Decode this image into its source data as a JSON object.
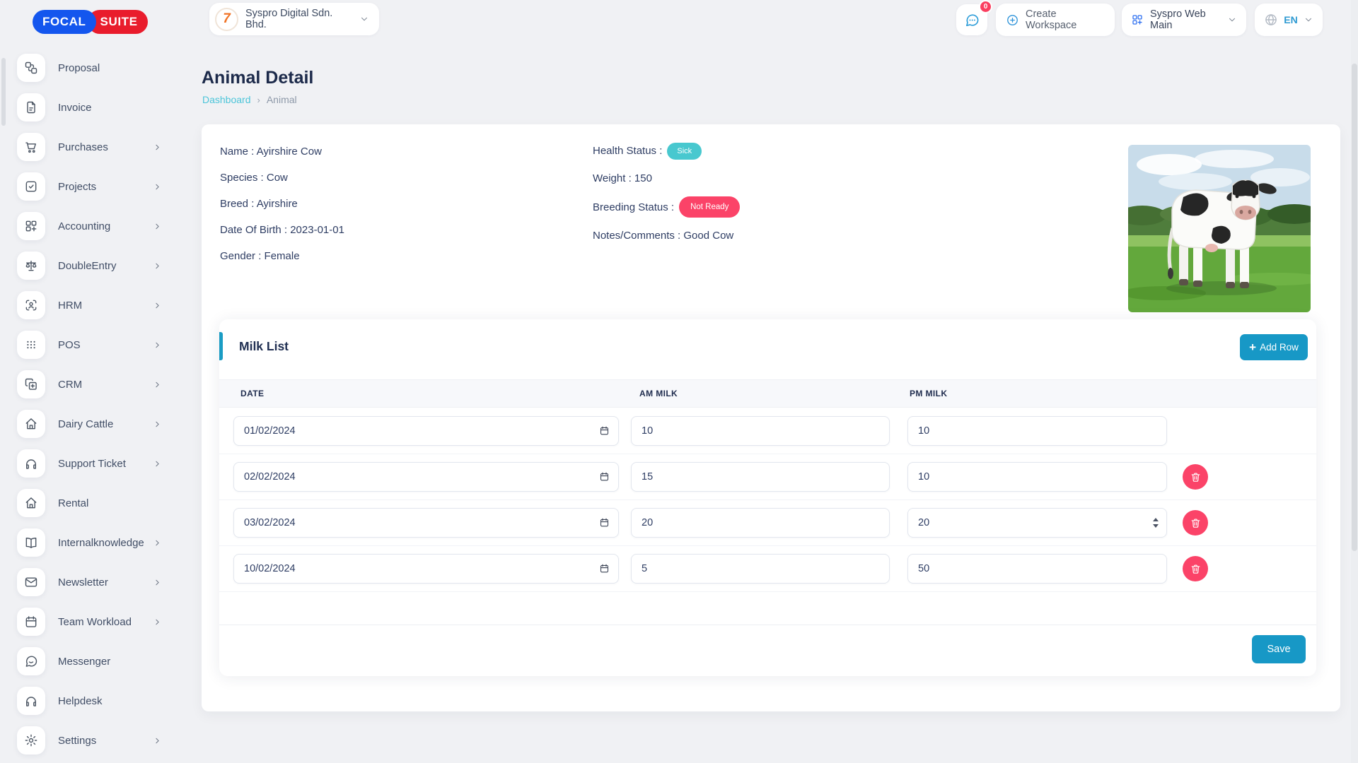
{
  "brand": {
    "left": "FOCAL",
    "right": "SUITE"
  },
  "topbar": {
    "workspace_label": "Syspro Digital Sdn. Bhd.",
    "messages_badge": "0",
    "create_workspace_label": "Create Workspace",
    "active_workspace_label": "Syspro Web Main",
    "language": "EN"
  },
  "sidebar": {
    "items": [
      {
        "label": "Proposal",
        "icon": "workflow",
        "chevron": false
      },
      {
        "label": "Invoice",
        "icon": "file-text",
        "chevron": false
      },
      {
        "label": "Purchases",
        "icon": "cart",
        "chevron": true
      },
      {
        "label": "Projects",
        "icon": "check-square",
        "chevron": true
      },
      {
        "label": "Accounting",
        "icon": "grid-plus",
        "chevron": true
      },
      {
        "label": "DoubleEntry",
        "icon": "scale",
        "chevron": true
      },
      {
        "label": "HRM",
        "icon": "user-scan",
        "chevron": true
      },
      {
        "label": "POS",
        "icon": "grip",
        "chevron": true
      },
      {
        "label": "CRM",
        "icon": "copy-plus",
        "chevron": true
      },
      {
        "label": "Dairy Cattle",
        "icon": "home",
        "chevron": true
      },
      {
        "label": "Support Ticket",
        "icon": "headphones",
        "chevron": true
      },
      {
        "label": "Rental",
        "icon": "home",
        "chevron": false
      },
      {
        "label": "Internalknowledge",
        "icon": "book-open",
        "chevron": true
      },
      {
        "label": "Newsletter",
        "icon": "mail",
        "chevron": true
      },
      {
        "label": "Team Workload",
        "icon": "calendar",
        "chevron": true
      },
      {
        "label": "Messenger",
        "icon": "message-circle",
        "chevron": false
      },
      {
        "label": "Helpdesk",
        "icon": "headphones",
        "chevron": false
      },
      {
        "label": "Settings",
        "icon": "gear",
        "chevron": true
      }
    ]
  },
  "page": {
    "title": "Animal Detail",
    "breadcrumb": {
      "link": "Dashboard",
      "separator": "›",
      "current": "Animal"
    }
  },
  "animal": {
    "left_fields": [
      {
        "label": "Name",
        "value": "Ayirshire Cow"
      },
      {
        "label": "Species",
        "value": "Cow"
      },
      {
        "label": "Breed",
        "value": "Ayirshire"
      },
      {
        "label": "Date Of Birth",
        "value": "2023-01-01"
      },
      {
        "label": "Gender",
        "value": "Female"
      }
    ],
    "right_fields": [
      {
        "label": "Health Status",
        "value": "Sick",
        "badge": true,
        "badge_color": "#48c8cf",
        "badge_size": "sm"
      },
      {
        "label": "Weight",
        "value": "150",
        "badge": false
      },
      {
        "label": "Breeding Status",
        "value": "Not Ready",
        "badge": true,
        "badge_color": "#fb4368",
        "badge_size": "lg"
      },
      {
        "label": "Notes/Comments",
        "value": "Good Cow",
        "badge": false
      }
    ]
  },
  "milk_list": {
    "title": "Milk List",
    "add_row_label": "Add Row",
    "add_row_plus": "+",
    "columns": [
      "DATE",
      "AM MILK",
      "PM MILK"
    ],
    "rows": [
      {
        "date": "01/02/2024",
        "am": "10",
        "pm": "10",
        "deletable": false,
        "pm_spinner": false
      },
      {
        "date": "02/02/2024",
        "am": "15",
        "pm": "10",
        "deletable": true,
        "pm_spinner": false
      },
      {
        "date": "03/02/2024",
        "am": "20",
        "pm": "20",
        "deletable": true,
        "pm_spinner": true
      },
      {
        "date": "10/02/2024",
        "am": "5",
        "pm": "50",
        "deletable": true,
        "pm_spinner": false
      }
    ],
    "save_label": "Save"
  },
  "colors": {
    "primary": "#1798c6",
    "accent_teal": "#48c8cf",
    "accent_pink": "#fb4368",
    "breadcrumb_link": "#4cc5d9",
    "brand_blue": "#1456ee",
    "brand_red": "#e91c2c"
  }
}
